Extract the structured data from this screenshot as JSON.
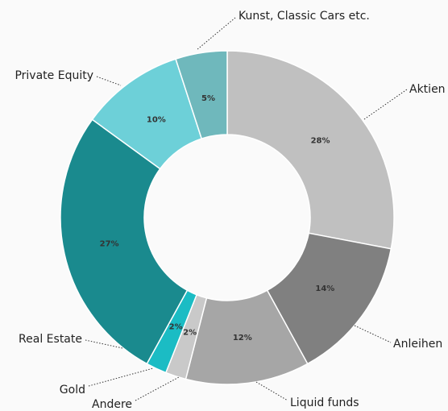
{
  "chart_data": {
    "type": "donut",
    "categories": [
      "Aktien",
      "Anleihen",
      "Liquid funds",
      "Andere",
      "Gold",
      "Real Estate",
      "Private Equity",
      "Kunst, Classic Cars etc."
    ],
    "values": [
      28,
      14,
      12,
      2,
      2,
      27,
      10,
      5
    ],
    "value_labels": [
      "28%",
      "14%",
      "12%",
      "2%",
      "2%",
      "27%",
      "10%",
      "5%"
    ],
    "colors": [
      "#c0c0c0",
      "#808080",
      "#a6a6a6",
      "#c9c9c9",
      "#1bbcc4",
      "#1a8a8e",
      "#6dd0d8",
      "#6fb8bc"
    ]
  }
}
